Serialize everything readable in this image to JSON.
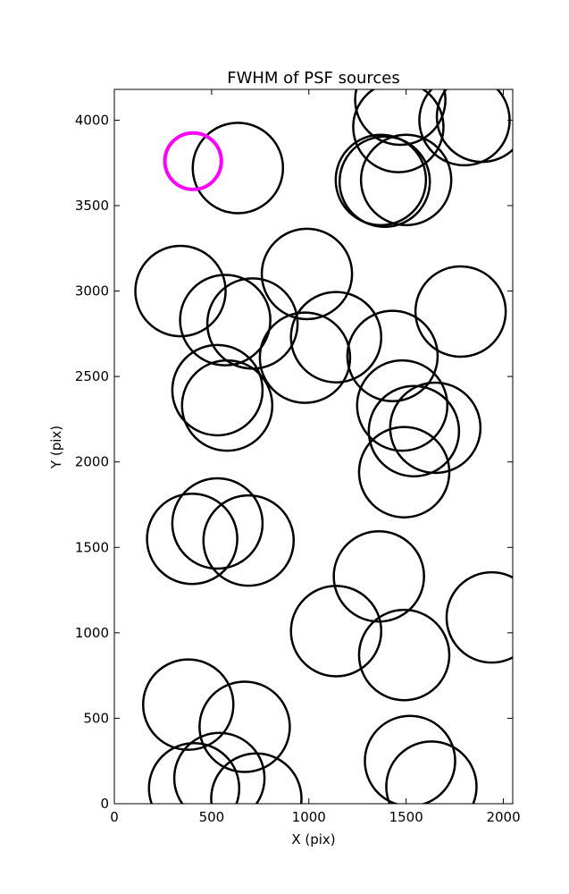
{
  "chart_data": {
    "type": "scatter",
    "title": "FWHM of PSF sources",
    "xlabel": "X (pix)",
    "ylabel": "Y (pix)",
    "xlim": [
      0,
      2048
    ],
    "ylim": [
      0,
      4180
    ],
    "xticks": [
      0,
      500,
      1000,
      1500,
      2000
    ],
    "yticks": [
      0,
      500,
      1000,
      1500,
      2000,
      2500,
      3000,
      3500,
      4000
    ],
    "grid": false,
    "colors": {
      "source_circle": "#000000",
      "reference_circle": "#ff00ff"
    },
    "reference_source": {
      "x": 405,
      "y": 3760,
      "r": 145
    },
    "sources": [
      {
        "x": 635,
        "y": 3720,
        "r": 232
      },
      {
        "x": 1470,
        "y": 4120,
        "r": 232
      },
      {
        "x": 1460,
        "y": 3960,
        "r": 232
      },
      {
        "x": 1800,
        "y": 4000,
        "r": 232
      },
      {
        "x": 1890,
        "y": 4020,
        "r": 232
      },
      {
        "x": 1370,
        "y": 3650,
        "r": 232
      },
      {
        "x": 1390,
        "y": 3640,
        "r": 232
      },
      {
        "x": 1500,
        "y": 3650,
        "r": 232
      },
      {
        "x": 340,
        "y": 3000,
        "r": 232
      },
      {
        "x": 990,
        "y": 3100,
        "r": 232
      },
      {
        "x": 570,
        "y": 2830,
        "r": 232
      },
      {
        "x": 710,
        "y": 2810,
        "r": 232
      },
      {
        "x": 1140,
        "y": 2730,
        "r": 232
      },
      {
        "x": 1780,
        "y": 2880,
        "r": 232
      },
      {
        "x": 980,
        "y": 2610,
        "r": 232
      },
      {
        "x": 1430,
        "y": 2620,
        "r": 232
      },
      {
        "x": 530,
        "y": 2420,
        "r": 232
      },
      {
        "x": 580,
        "y": 2330,
        "r": 232
      },
      {
        "x": 1480,
        "y": 2330,
        "r": 232
      },
      {
        "x": 1540,
        "y": 2180,
        "r": 232
      },
      {
        "x": 1650,
        "y": 2200,
        "r": 232
      },
      {
        "x": 1490,
        "y": 1940,
        "r": 232
      },
      {
        "x": 400,
        "y": 1550,
        "r": 232
      },
      {
        "x": 530,
        "y": 1640,
        "r": 232
      },
      {
        "x": 690,
        "y": 1540,
        "r": 232
      },
      {
        "x": 1360,
        "y": 1330,
        "r": 232
      },
      {
        "x": 1140,
        "y": 1010,
        "r": 232
      },
      {
        "x": 1490,
        "y": 870,
        "r": 232
      },
      {
        "x": 1940,
        "y": 1090,
        "r": 232
      },
      {
        "x": 380,
        "y": 580,
        "r": 232
      },
      {
        "x": 670,
        "y": 450,
        "r": 232
      },
      {
        "x": 410,
        "y": 90,
        "r": 232
      },
      {
        "x": 540,
        "y": 150,
        "r": 232
      },
      {
        "x": 730,
        "y": 30,
        "r": 232
      },
      {
        "x": 1520,
        "y": 250,
        "r": 232
      },
      {
        "x": 1630,
        "y": 100,
        "r": 232
      }
    ]
  }
}
